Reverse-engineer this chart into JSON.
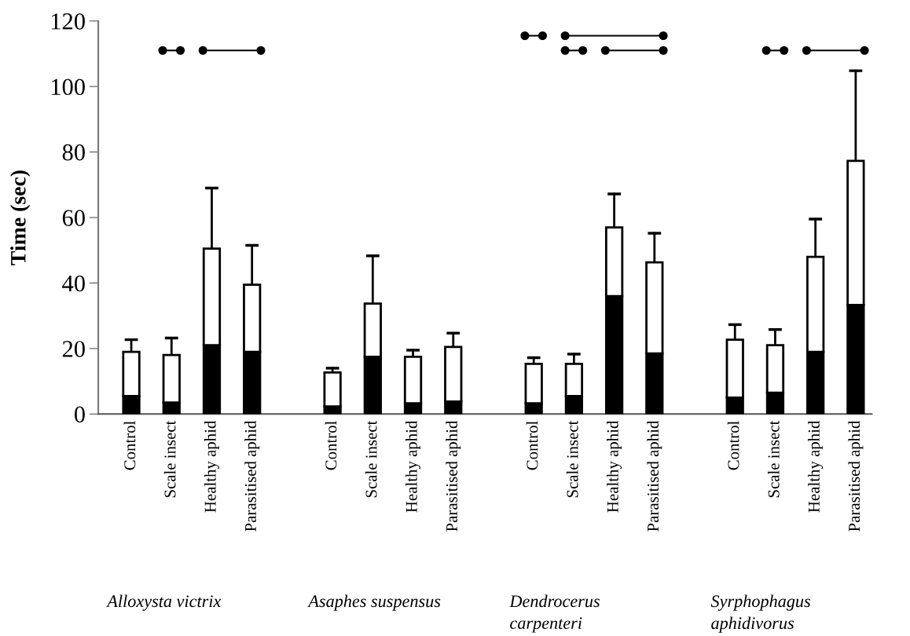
{
  "chart_data": {
    "type": "bar",
    "stacked": true,
    "ylabel": "Time (sec)",
    "categories": [
      "Control",
      "Scale insect",
      "Healthy aphid",
      "Parasitised aphid",
      null,
      "Control",
      "Scale insect",
      "Healthy aphid",
      "Parasitised aphid",
      null,
      "Control",
      "Scale insect",
      "Healthy aphid",
      "Parasitised aphid",
      null,
      "Control",
      "Scale insect",
      "Healthy aphid",
      "Parasitised aphid"
    ],
    "series": [
      {
        "color": "#000000",
        "values": [
          5.5,
          3.5,
          21,
          19,
          null,
          2.3,
          17.5,
          3.3,
          3.8,
          null,
          3.3,
          5.5,
          36,
          18.5,
          null,
          5,
          6.5,
          19,
          33.3
        ]
      },
      {
        "color": "#ffffff",
        "values": [
          13.5,
          14.5,
          29.5,
          20.5,
          null,
          10.4,
          16.2,
          14.2,
          16.7,
          null,
          12,
          9.8,
          21,
          27.8,
          null,
          17.7,
          14.5,
          29,
          44
        ],
        "errors": [
          [
            19,
            22.7
          ],
          [
            18,
            23.2
          ],
          [
            50.5,
            69
          ],
          [
            39.5,
            51.5
          ],
          null,
          [
            12.7,
            14
          ],
          [
            33.7,
            48.3
          ],
          [
            17.5,
            19.5
          ],
          [
            20.5,
            24.7
          ],
          null,
          [
            15.3,
            17.2
          ],
          [
            15.3,
            18.3
          ],
          [
            57,
            67.2
          ],
          [
            46.3,
            55.2
          ],
          null,
          [
            22.7,
            27.3
          ],
          [
            21,
            25.8
          ],
          [
            48,
            59.5
          ],
          [
            77.3,
            104.8
          ]
        ]
      }
    ],
    "ylim": [
      0,
      120
    ],
    "yticks": [
      0,
      20,
      40,
      60,
      80,
      100,
      120
    ],
    "grid": false,
    "legend": false,
    "annotations": [
      "Alloxysta victrix",
      "Asaphes suspensus",
      "Dendrocerus carpenteri",
      "Syrphophagus aphidivorus"
    ]
  }
}
